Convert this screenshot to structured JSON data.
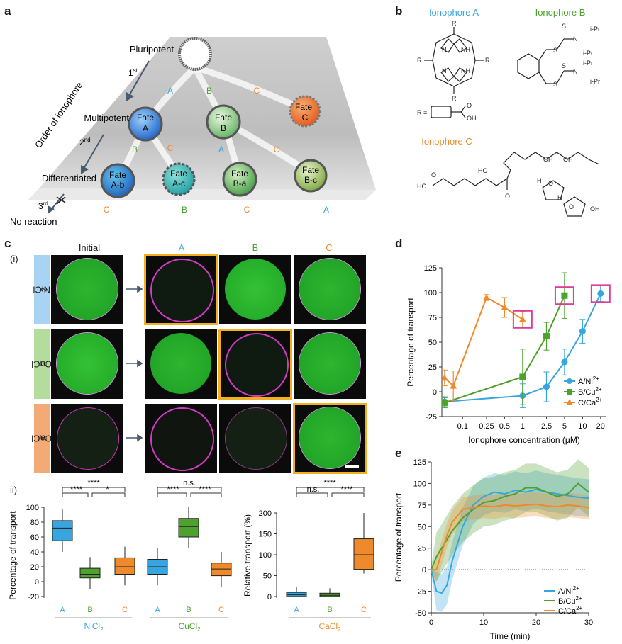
{
  "panels": {
    "a": "a",
    "b": "b",
    "c": "c",
    "d": "d",
    "e": "e",
    "ci": "(i)",
    "cii": "ii)"
  },
  "colors": {
    "A": "#37a6de",
    "B": "#4ea02f",
    "C": "#ee8a2c",
    "mag": "#e03a9c",
    "sel": "#f2b021"
  },
  "panel_a": {
    "pluripotent": "Pluripotent",
    "multipotent": "Multipotent",
    "differentiated": "Differentiated",
    "no_reaction": "No reaction",
    "order": "Order of ionophore",
    "first": "1",
    "first_sup": "st",
    "second": "2",
    "second_sup": "nd",
    "third": "3",
    "third_sup": "rd",
    "cells": {
      "fateA": [
        "Fate",
        "A"
      ],
      "fateB": [
        "Fate",
        "B"
      ],
      "fateC": [
        "Fate",
        "C"
      ],
      "fateAb": [
        "Fate",
        "A-b"
      ],
      "fateAc": [
        "Fate",
        "A-c"
      ],
      "fateBa": [
        "Fate",
        "B-a"
      ],
      "fateBc": [
        "Fate",
        "B-c"
      ]
    },
    "lane_letters_top": [
      "A",
      "B",
      "C"
    ],
    "lane_letters_mid": [
      "B",
      "C",
      "A",
      "C"
    ],
    "lane_letters_bottom": [
      "C",
      "B",
      "C",
      "A"
    ]
  },
  "panel_b": {
    "ionA": "Ionophore A",
    "ionB": "Ionophore B",
    "ionC": "Ionophore C",
    "atoms": {
      "R": "R",
      "NH": "NH",
      "N": "N",
      "S": "S",
      "OH": "OH",
      "HO": "HO",
      "O": "O",
      "H": "H",
      "iPr": "i-Pr",
      "Req": "R ="
    }
  },
  "panel_c": {
    "initial": "Initial",
    "colA": "A",
    "colB": "B",
    "colC": "C",
    "rows": [
      {
        "salt": "NiCl",
        "sub": "2"
      },
      {
        "salt": "CuCl",
        "sub": "2"
      },
      {
        "salt": "CaCl",
        "sub": "2"
      }
    ]
  },
  "panel_cii": {
    "ylabel": "Percentage of transport",
    "ylabel2": "Relative transport (%)",
    "yticks": [
      "100",
      "80",
      "60",
      "40",
      "20",
      "0",
      "-20"
    ],
    "yticks2": [
      "200",
      "150",
      "100",
      "50",
      "0"
    ],
    "groups": [
      {
        "name": "NiCl",
        "sub": "2"
      },
      {
        "name": "CuCl",
        "sub": "2"
      },
      {
        "name": "CaCl",
        "sub": "2"
      }
    ],
    "xcat": [
      "A",
      "B",
      "C"
    ],
    "sig": {
      "ni": [
        "****",
        "****",
        "*"
      ],
      "cu": [
        "n.s.",
        "****",
        "****"
      ],
      "ca": [
        "****",
        "n.s.",
        "****"
      ]
    }
  },
  "chart_data": [
    {
      "type": "line",
      "panel": "d",
      "xlabel": "Ionophore concentration (μM)",
      "ylabel": "Percentage of transport",
      "x_scale": "log",
      "ylim": [
        -25,
        125
      ],
      "xticks": [
        "0.1",
        "0.25",
        "0.5",
        "1",
        "2.5",
        "5",
        "10",
        "20"
      ],
      "yticks": [
        "125",
        "100",
        "75",
        "50",
        "25",
        "0",
        "-25"
      ],
      "series": [
        {
          "name": "A/Ni2+",
          "x": [
            0.05,
            1,
            2.5,
            5,
            10,
            20
          ],
          "y": [
            -10,
            -4,
            5,
            30,
            61,
            99
          ],
          "err": [
            5,
            12,
            15,
            13,
            12,
            8
          ]
        },
        {
          "name": "B/Cu2+",
          "x": [
            0.05,
            1,
            2.5,
            5
          ],
          "y": [
            -11,
            15,
            56,
            97
          ],
          "err": [
            5,
            28,
            14,
            23
          ]
        },
        {
          "name": "C/Ca2+",
          "x": [
            0.05,
            0.07,
            0.25,
            0.5,
            1
          ],
          "y": [
            14,
            6,
            95,
            85,
            73
          ],
          "err": [
            8,
            15,
            3,
            10,
            8
          ]
        }
      ],
      "legend": [
        {
          "pre": "A/Ni",
          "sup": "2+"
        },
        {
          "pre": "B/Cu",
          "sup": "2+"
        },
        {
          "pre": "C/Ca",
          "sup": "2+"
        }
      ]
    },
    {
      "type": "line",
      "panel": "e",
      "xlabel": "Time (min)",
      "ylabel": "Percentage of transport",
      "xlim": [
        0,
        30
      ],
      "ylim": [
        -50,
        125
      ],
      "xticks": [
        "0",
        "10",
        "20",
        "30"
      ],
      "yticks": [
        "125",
        "100",
        "75",
        "50",
        "25",
        "0",
        "-25",
        "-50"
      ],
      "series": [
        {
          "name": "A/Ni2+",
          "x": [
            0,
            1,
            2,
            3,
            4,
            6,
            8,
            10,
            12,
            14,
            16,
            18,
            20,
            22,
            24,
            26,
            28,
            30
          ],
          "y": [
            0,
            -25,
            -27,
            -18,
            10,
            50,
            75,
            85,
            90,
            88,
            92,
            90,
            93,
            90,
            88,
            86,
            84,
            83
          ]
        },
        {
          "name": "B/Cu2+",
          "x": [
            0,
            1,
            2,
            3,
            4,
            6,
            8,
            10,
            12,
            14,
            16,
            18,
            20,
            22,
            24,
            26,
            28,
            30
          ],
          "y": [
            0,
            15,
            25,
            35,
            45,
            60,
            70,
            78,
            80,
            85,
            88,
            95,
            95,
            90,
            85,
            88,
            100,
            90
          ]
        },
        {
          "name": "C/Ca2+",
          "x": [
            0,
            1,
            2,
            3,
            4,
            6,
            8,
            10,
            12,
            14,
            16,
            18,
            20,
            22,
            24,
            26,
            28,
            30
          ],
          "y": [
            0,
            0,
            20,
            40,
            55,
            70,
            72,
            74,
            73,
            75,
            74,
            75,
            76,
            74,
            73,
            75,
            74,
            72
          ]
        }
      ],
      "legend": [
        {
          "pre": "A/Ni",
          "sup": "2+"
        },
        {
          "pre": "B/Cu",
          "sup": "2+"
        },
        {
          "pre": "C/Ca",
          "sup": "2+"
        }
      ]
    }
  ]
}
